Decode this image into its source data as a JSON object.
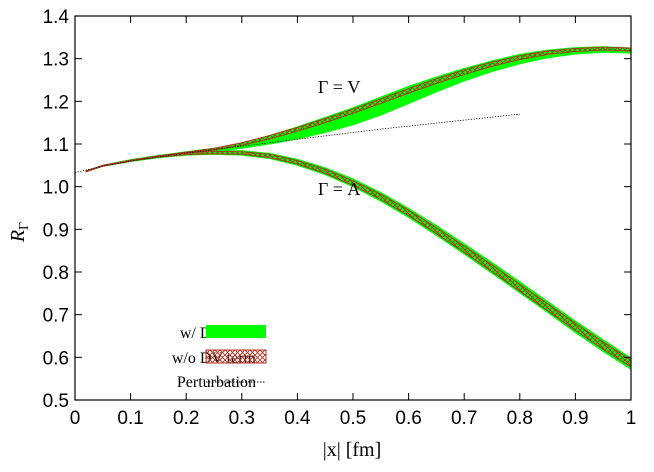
{
  "chart_data": {
    "type": "line",
    "xlabel": "|x| [fm]",
    "ylabel": "R_Γ",
    "xlim": [
      0,
      1
    ],
    "ylim": [
      0.5,
      1.4
    ],
    "x_ticks": [
      "0",
      "0.1",
      "0.2",
      "0.3",
      "0.4",
      "0.5",
      "0.6",
      "0.7",
      "0.8",
      "0.9",
      "1"
    ],
    "y_ticks": [
      "0.5",
      "0.6",
      "0.7",
      "0.8",
      "0.9",
      "1.0",
      "1.1",
      "1.2",
      "1.3",
      "1.4"
    ],
    "grid": false,
    "legend_position": "bottom-left",
    "annotations": [
      {
        "text": "Γ = V",
        "x": 0.475,
        "y": 1.22
      },
      {
        "text": "Γ = A",
        "x": 0.475,
        "y": 0.98
      }
    ],
    "series": [
      {
        "name": "w/ DV term",
        "curve": "V",
        "color": "#00ff00",
        "x": [
          0.02,
          0.05,
          0.1,
          0.15,
          0.2,
          0.25,
          0.3,
          0.35,
          0.4,
          0.45,
          0.5,
          0.55,
          0.6,
          0.65,
          0.7,
          0.75,
          0.8,
          0.85,
          0.9,
          0.95,
          1.0
        ],
        "lower": [
          1.035,
          1.048,
          1.06,
          1.07,
          1.078,
          1.082,
          1.09,
          1.1,
          1.112,
          1.127,
          1.145,
          1.168,
          1.195,
          1.222,
          1.248,
          1.27,
          1.288,
          1.302,
          1.311,
          1.315,
          1.313
        ],
        "upper": [
          1.037,
          1.05,
          1.063,
          1.073,
          1.082,
          1.09,
          1.102,
          1.12,
          1.14,
          1.162,
          1.185,
          1.21,
          1.235,
          1.257,
          1.277,
          1.295,
          1.31,
          1.32,
          1.326,
          1.328,
          1.325
        ]
      },
      {
        "name": "w/ DV term",
        "curve": "A",
        "color": "#00ff00",
        "x": [
          0.02,
          0.05,
          0.1,
          0.15,
          0.2,
          0.25,
          0.3,
          0.35,
          0.4,
          0.45,
          0.5,
          0.55,
          0.6,
          0.65,
          0.7,
          0.75,
          0.8,
          0.85,
          0.9,
          0.95,
          1.0
        ],
        "lower": [
          1.035,
          1.048,
          1.059,
          1.068,
          1.074,
          1.076,
          1.074,
          1.066,
          1.05,
          1.028,
          1.0,
          0.966,
          0.928,
          0.886,
          0.842,
          0.797,
          0.751,
          0.705,
          0.658,
          0.614,
          0.572
        ],
        "upper": [
          1.037,
          1.05,
          1.063,
          1.073,
          1.08,
          1.084,
          1.084,
          1.078,
          1.064,
          1.044,
          1.018,
          0.986,
          0.949,
          0.909,
          0.866,
          0.822,
          0.777,
          0.731,
          0.685,
          0.641,
          0.598
        ]
      },
      {
        "name": "w/o DV term",
        "curve": "V",
        "color": "#c0504d",
        "x": [
          0.02,
          0.05,
          0.1,
          0.15,
          0.2,
          0.25,
          0.3,
          0.35,
          0.4,
          0.45,
          0.5,
          0.55,
          0.6,
          0.65,
          0.7,
          0.75,
          0.8,
          0.85,
          0.9,
          0.95,
          1.0
        ],
        "lower": [
          1.035,
          1.048,
          1.06,
          1.071,
          1.079,
          1.086,
          1.097,
          1.112,
          1.13,
          1.15,
          1.172,
          1.195,
          1.219,
          1.242,
          1.263,
          1.282,
          1.298,
          1.31,
          1.317,
          1.32,
          1.318
        ],
        "upper": [
          1.037,
          1.05,
          1.062,
          1.072,
          1.081,
          1.09,
          1.103,
          1.12,
          1.139,
          1.16,
          1.182,
          1.206,
          1.23,
          1.253,
          1.274,
          1.292,
          1.307,
          1.318,
          1.324,
          1.327,
          1.325
        ]
      },
      {
        "name": "w/o DV term",
        "curve": "A",
        "color": "#c0504d",
        "x": [
          0.02,
          0.05,
          0.1,
          0.15,
          0.2,
          0.25,
          0.3,
          0.35,
          0.4,
          0.45,
          0.5,
          0.55,
          0.6,
          0.65,
          0.7,
          0.75,
          0.8,
          0.85,
          0.9,
          0.95,
          1.0
        ],
        "lower": [
          1.035,
          1.048,
          1.06,
          1.069,
          1.075,
          1.077,
          1.076,
          1.068,
          1.053,
          1.031,
          1.003,
          0.97,
          0.932,
          0.89,
          0.846,
          0.801,
          0.755,
          0.709,
          0.663,
          0.619,
          0.577
        ],
        "upper": [
          1.037,
          1.05,
          1.062,
          1.072,
          1.079,
          1.083,
          1.082,
          1.076,
          1.061,
          1.041,
          1.014,
          0.982,
          0.945,
          0.904,
          0.861,
          0.817,
          0.771,
          0.726,
          0.68,
          0.636,
          0.594
        ]
      },
      {
        "name": "Perturbation",
        "color": "#000000",
        "x": [
          0.0,
          0.05,
          0.1,
          0.15,
          0.2,
          0.25,
          0.3,
          0.35,
          0.4,
          0.45,
          0.5,
          0.55,
          0.6,
          0.65,
          0.7,
          0.75,
          0.8
        ],
        "y": [
          1.033,
          1.048,
          1.06,
          1.07,
          1.079,
          1.087,
          1.095,
          1.103,
          1.111,
          1.119,
          1.127,
          1.135,
          1.142,
          1.149,
          1.156,
          1.163,
          1.17
        ]
      }
    ],
    "legend": [
      "w/ DV term",
      "w/o DV term",
      "Perturbation"
    ]
  }
}
